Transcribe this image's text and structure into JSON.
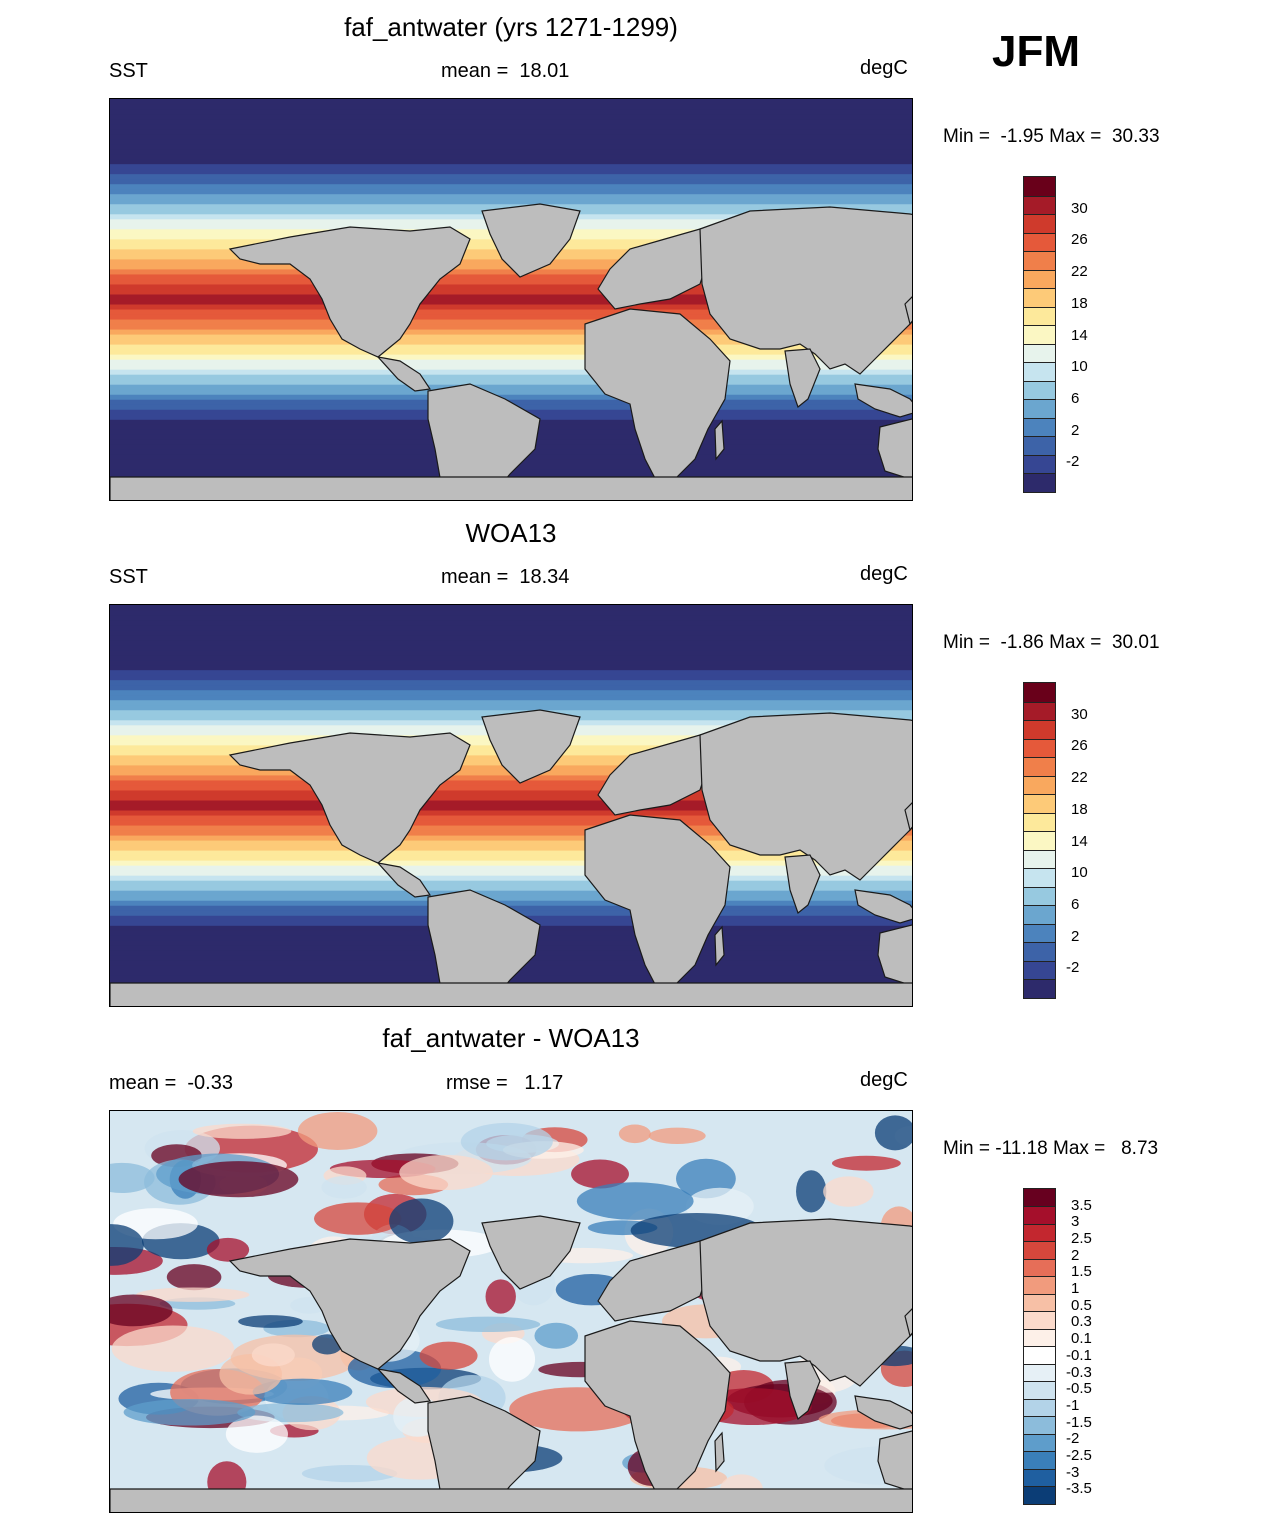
{
  "season": "JFM",
  "panels": [
    {
      "id": "model",
      "title": "faf_antwater (yrs 1271-1299)",
      "left_label": "SST",
      "center_label": "mean =  18.01",
      "units": "degC",
      "minmax": "Min =  -1.95 Max =  30.33",
      "colorbar_labels": [
        "30",
        "26",
        "22",
        "18",
        "14",
        "10",
        "6",
        "2",
        "-2"
      ]
    },
    {
      "id": "obs",
      "title": "WOA13",
      "left_label": "SST",
      "center_label": "mean =  18.34",
      "units": "degC",
      "minmax": "Min =  -1.86 Max =  30.01",
      "colorbar_labels": [
        "30",
        "26",
        "22",
        "18",
        "14",
        "10",
        "6",
        "2",
        "-2"
      ]
    },
    {
      "id": "diff",
      "title": "faf_antwater - WOA13",
      "left_label": "mean =  -0.33",
      "center_label": "rmse =   1.17",
      "units": "degC",
      "minmax": "Min = -11.18 Max =   8.73",
      "colorbar_labels": [
        "3.5",
        "3",
        "2.5",
        "2",
        "1.5",
        "1",
        "0.5",
        "0.3",
        "0.1",
        "-0.1",
        "-0.3",
        "-0.5",
        "-1",
        "-1.5",
        "-2",
        "-2.5",
        "-3",
        "-3.5"
      ]
    }
  ],
  "colors": {
    "land": "#bdbdbd",
    "sst_scale": [
      "#69001a",
      "#a51b28",
      "#cf3a2c",
      "#e5593a",
      "#f07f4a",
      "#f9a85e",
      "#fdca78",
      "#fde99b",
      "#fbf7c3",
      "#e7f3ec",
      "#c6e4ef",
      "#97c9e0",
      "#6ba6cf",
      "#4c83bd",
      "#3d63a8",
      "#364693",
      "#2d2a6b"
    ],
    "diff_scale": [
      "#67001f",
      "#a50f2b",
      "#c3272f",
      "#d6473c",
      "#e66e58",
      "#f19b7d",
      "#f7c0a6",
      "#fbdacb",
      "#fdf0e8",
      "#ffffff",
      "#e6f0f6",
      "#cfe3ef",
      "#b3d3e8",
      "#8cbcdb",
      "#5e9dcb",
      "#3a7fb9",
      "#1f5fa0",
      "#0b3d76"
    ]
  }
}
